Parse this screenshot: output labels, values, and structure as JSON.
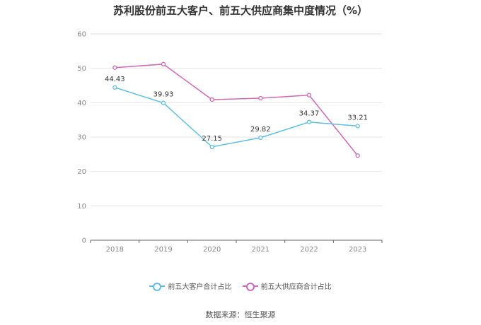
{
  "colors": {
    "customers": "#5bc0eb",
    "suppliers": "#d466b5"
  },
  "chart_data": {
    "type": "line",
    "title": "苏利股份前五大客户、前五大供应商集中度情况（%）",
    "categories": [
      "2018",
      "2019",
      "2020",
      "2021",
      "2022",
      "2023"
    ],
    "series": [
      {
        "name": "前五大客户合计占比",
        "values": [
          44.43,
          39.93,
          27.15,
          29.82,
          34.37,
          33.21
        ],
        "labels": [
          "44.43",
          "39.93",
          "27.15",
          "29.82",
          "34.37",
          "33.21"
        ]
      },
      {
        "name": "前五大供应商合计占比",
        "values": [
          50.2,
          51.2,
          40.9,
          41.3,
          42.2,
          24.6
        ]
      }
    ],
    "ylim": [
      0,
      60
    ],
    "yticks": [
      "0",
      "10",
      "20",
      "30",
      "40",
      "50",
      "60"
    ],
    "grid": true,
    "legend_position": "bottom"
  },
  "source": "数据来源：恒生聚源"
}
